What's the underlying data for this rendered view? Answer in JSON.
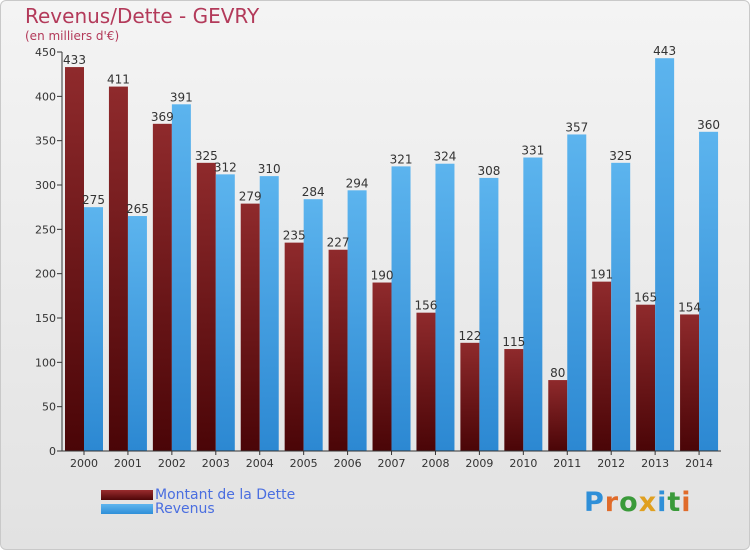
{
  "title": "Revenus/Dette - GEVRY",
  "subtitle": "(en milliers d'€)",
  "logo_text": "Proxiti",
  "colors": {
    "debt": "#7a1a1c",
    "revenue": "#4fa8e8",
    "title": "#b33a5a",
    "legend_text": "#4a6ee0"
  },
  "chart_data": {
    "type": "bar",
    "title": "Revenus/Dette - GEVRY",
    "subtitle": "(en milliers d'€)",
    "categories": [
      "2000",
      "2001",
      "2002",
      "2003",
      "2004",
      "2005",
      "2006",
      "2007",
      "2008",
      "2009",
      "2010",
      "2011",
      "2012",
      "2013",
      "2014"
    ],
    "series": [
      {
        "name": "Montant de la Dette",
        "values": [
          433,
          411,
          369,
          325,
          279,
          235,
          227,
          190,
          156,
          122,
          115,
          80,
          191,
          165,
          154
        ]
      },
      {
        "name": "Revenus",
        "values": [
          275,
          265,
          391,
          312,
          310,
          284,
          294,
          321,
          324,
          308,
          331,
          357,
          325,
          443,
          360
        ]
      }
    ],
    "ylim": [
      0,
      450
    ],
    "yticks": [
      0,
      50,
      100,
      150,
      200,
      250,
      300,
      350,
      400,
      450
    ],
    "grid": false,
    "legend": "bottom-left"
  }
}
